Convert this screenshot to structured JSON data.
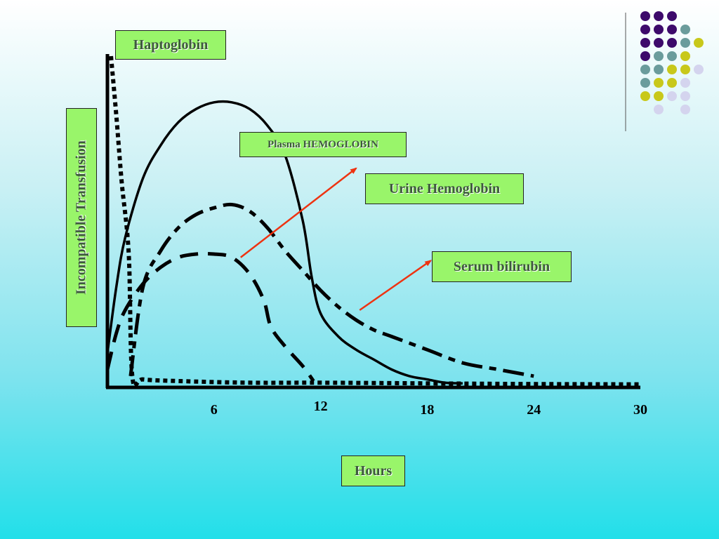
{
  "chart_data": {
    "type": "line",
    "xlabel": "Hours",
    "ylabel": "Incompatible  Transfusion",
    "xlim": [
      0,
      30
    ],
    "ylim": [
      0,
      100
    ],
    "x_ticks": [
      6,
      12,
      18,
      24,
      30
    ],
    "grid": false,
    "series": [
      {
        "name": "Haptoglobin",
        "style": "dotted",
        "x": [
          0.2,
          0.5,
          0.8,
          1.2,
          1.4,
          2,
          4,
          8,
          12,
          18,
          24,
          30
        ],
        "y": [
          100,
          82,
          62,
          40,
          3,
          2,
          1.5,
          1,
          1,
          0.8,
          0.6,
          0.5
        ]
      },
      {
        "name": "Plasma  HEMOGLOBIN",
        "style": "solid",
        "x": [
          0,
          0.5,
          1,
          2,
          3,
          4,
          5,
          6,
          7,
          8,
          9,
          10,
          11,
          11.5,
          12,
          13,
          14,
          15,
          16,
          17,
          18,
          19,
          20
        ],
        "y": [
          10,
          30,
          45,
          63,
          73,
          80,
          84,
          86,
          86,
          84,
          79,
          70,
          50,
          33,
          22,
          15,
          11,
          8,
          5,
          3,
          2,
          1,
          0.8
        ]
      },
      {
        "name": "Urine Hemoglobin",
        "style": "dashed",
        "x": [
          0,
          0.5,
          1,
          2,
          3,
          4,
          5,
          6,
          7,
          8,
          8.8,
          9.2,
          10,
          11,
          11.6
        ],
        "y": [
          5,
          16,
          23,
          31,
          36,
          39,
          40,
          40,
          39,
          34,
          26,
          18,
          12,
          6,
          1.5
        ]
      },
      {
        "name": "Serum bilirubin",
        "style": "dash-dot",
        "x": [
          1.3,
          2,
          3,
          4,
          5,
          6,
          7,
          8,
          9,
          10,
          11,
          12,
          13,
          14,
          15,
          16,
          18,
          20,
          22,
          24
        ],
        "y": [
          3,
          30,
          41,
          48,
          52,
          54,
          55,
          53,
          48,
          41,
          35,
          29,
          24,
          20,
          17,
          15,
          11,
          7,
          5,
          3
        ]
      }
    ],
    "annotations": [
      {
        "text": "Urine Hemoglobin",
        "arrow_from": [
          7.5,
          39
        ],
        "arrow_to": [
          14,
          66
        ]
      },
      {
        "text": "Serum bilirubin",
        "arrow_from": [
          14.2,
          23
        ],
        "arrow_to": [
          18.2,
          38
        ]
      }
    ]
  },
  "colors": {
    "label_box_fill": "#99f56a",
    "label_text": "#3d5a3d",
    "arrow": "#ee3311",
    "curve": "#000000",
    "background_bottom": "#22dfe9"
  }
}
